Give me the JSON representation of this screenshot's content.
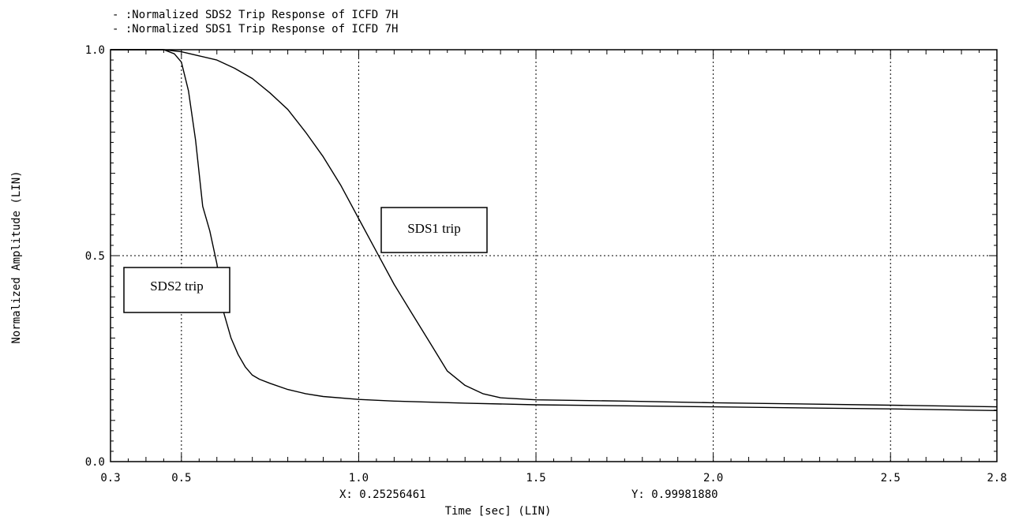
{
  "chart_data": {
    "type": "line",
    "legend": [
      "- :Normalized SDS2 Trip Response of ICFD 7H",
      "- :Normalized SDS1 Trip Response of ICFD 7H"
    ],
    "xlabel": "Time [sec] (LIN)",
    "ylabel": "Normalized Amplitude (LIN)",
    "xlim": [
      0.3,
      2.8
    ],
    "ylim": [
      0.0,
      1.0
    ],
    "x_ticks": [
      0.3,
      0.5,
      1.0,
      1.5,
      2.0,
      2.5,
      2.8
    ],
    "x_tick_labels": [
      "0.3",
      "0.5",
      "1.0",
      "1.5",
      "2.0",
      "2.5",
      "2.8"
    ],
    "y_ticks": [
      0.0,
      0.5,
      1.0
    ],
    "y_tick_labels": [
      "0.0",
      "0.5",
      "1.0"
    ],
    "grid": true,
    "legend_position": "top-left",
    "cursor_readout": {
      "x": "X: 0.25256461",
      "y": "Y: 0.99981880"
    },
    "annotations": [
      "SDS1 trip",
      "SDS2 trip"
    ],
    "series": [
      {
        "label": "SDS2 trip",
        "x": [
          0.3,
          0.4,
          0.45,
          0.48,
          0.5,
          0.52,
          0.54,
          0.56,
          0.58,
          0.6,
          0.62,
          0.64,
          0.66,
          0.68,
          0.7,
          0.72,
          0.75,
          0.8,
          0.85,
          0.9,
          1.0,
          1.1,
          1.3,
          1.5,
          2.0,
          2.5,
          2.8
        ],
        "y": [
          1.0,
          1.0,
          1.0,
          0.99,
          0.97,
          0.9,
          0.78,
          0.62,
          0.56,
          0.48,
          0.36,
          0.3,
          0.26,
          0.23,
          0.21,
          0.2,
          0.19,
          0.175,
          0.165,
          0.158,
          0.151,
          0.147,
          0.142,
          0.138,
          0.133,
          0.128,
          0.124
        ]
      },
      {
        "label": "SDS1 trip",
        "x": [
          0.3,
          0.4,
          0.45,
          0.5,
          0.55,
          0.6,
          0.65,
          0.7,
          0.75,
          0.8,
          0.85,
          0.9,
          0.95,
          1.0,
          1.05,
          1.1,
          1.15,
          1.2,
          1.25,
          1.3,
          1.35,
          1.4,
          1.5,
          1.75,
          2.0,
          2.5,
          2.8
        ],
        "y": [
          1.0,
          1.0,
          1.0,
          0.995,
          0.985,
          0.975,
          0.955,
          0.93,
          0.895,
          0.855,
          0.8,
          0.74,
          0.67,
          0.59,
          0.51,
          0.43,
          0.36,
          0.29,
          0.22,
          0.185,
          0.165,
          0.155,
          0.15,
          0.147,
          0.143,
          0.137,
          0.133
        ]
      }
    ]
  }
}
